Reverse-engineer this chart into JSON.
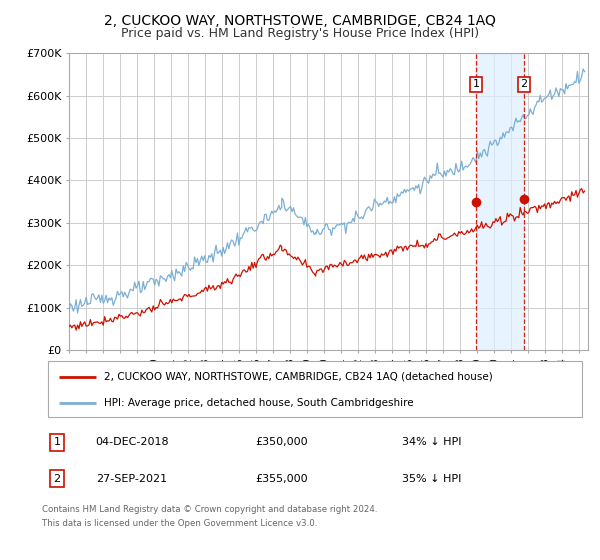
{
  "title": "2, CUCKOO WAY, NORTHSTOWE, CAMBRIDGE, CB24 1AQ",
  "subtitle": "Price paid vs. HM Land Registry's House Price Index (HPI)",
  "ylim": [
    0,
    700000
  ],
  "yticks": [
    0,
    100000,
    200000,
    300000,
    400000,
    500000,
    600000,
    700000
  ],
  "ytick_labels": [
    "£0",
    "£100K",
    "£200K",
    "£300K",
    "£400K",
    "£500K",
    "£600K",
    "£700K"
  ],
  "xlim_start": 1995.0,
  "xlim_end": 2025.5,
  "hpi_color": "#7bafd4",
  "price_color": "#cc1100",
  "marker1_date": 2018.92,
  "marker1_price": 350000,
  "marker1_label": "04-DEC-2018",
  "marker1_value_str": "£350,000",
  "marker1_pct": "34% ↓ HPI",
  "marker2_date": 2021.74,
  "marker2_price": 355000,
  "marker2_label": "27-SEP-2021",
  "marker2_value_str": "£355,000",
  "marker2_pct": "35% ↓ HPI",
  "legend_line1": "2, CUCKOO WAY, NORTHSTOWE, CAMBRIDGE, CB24 1AQ (detached house)",
  "legend_line2": "HPI: Average price, detached house, South Cambridgeshire",
  "footnote1": "Contains HM Land Registry data © Crown copyright and database right 2024.",
  "footnote2": "This data is licensed under the Open Government Licence v3.0.",
  "background_color": "#ffffff",
  "grid_color": "#cccccc",
  "shade_color": "#ddeeff",
  "title_fontsize": 10,
  "subtitle_fontsize": 9
}
